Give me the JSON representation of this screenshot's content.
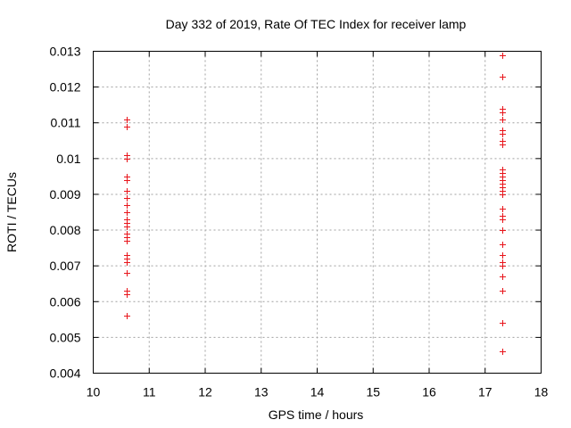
{
  "chart_data": {
    "type": "scatter",
    "title": "Day 332 of 2019, Rate Of TEC Index for receiver lamp",
    "xlabel": "GPS time / hours",
    "ylabel": "ROTI / TECUs",
    "xlim": [
      10,
      18
    ],
    "ylim": [
      0.004,
      0.013
    ],
    "xticks": [
      "10",
      "11",
      "12",
      "13",
      "14",
      "15",
      "16",
      "17",
      "18"
    ],
    "yticks": [
      "0.004",
      "0.005",
      "0.006",
      "0.007",
      "0.008",
      "0.009",
      "0.01",
      "0.011",
      "0.012",
      "0.013"
    ],
    "grid": true,
    "marker": "+",
    "marker_color": "#e8141a",
    "series": [
      {
        "name": "ROTI",
        "points": [
          [
            10.6,
            0.0111
          ],
          [
            10.6,
            0.0109
          ],
          [
            10.6,
            0.0101
          ],
          [
            10.6,
            0.01
          ],
          [
            10.6,
            0.0095
          ],
          [
            10.6,
            0.0094
          ],
          [
            10.6,
            0.0091
          ],
          [
            10.6,
            0.0089
          ],
          [
            10.6,
            0.0087
          ],
          [
            10.6,
            0.0085
          ],
          [
            10.6,
            0.0083
          ],
          [
            10.6,
            0.0082
          ],
          [
            10.6,
            0.0081
          ],
          [
            10.6,
            0.0079
          ],
          [
            10.6,
            0.0078
          ],
          [
            10.6,
            0.0077
          ],
          [
            10.6,
            0.0073
          ],
          [
            10.6,
            0.0072
          ],
          [
            10.6,
            0.0071
          ],
          [
            10.6,
            0.0068
          ],
          [
            10.6,
            0.0063
          ],
          [
            10.6,
            0.0062
          ],
          [
            10.6,
            0.0056
          ],
          [
            17.3,
            0.0129
          ],
          [
            17.3,
            0.0123
          ],
          [
            17.3,
            0.0114
          ],
          [
            17.3,
            0.0113
          ],
          [
            17.3,
            0.0111
          ],
          [
            17.3,
            0.0108
          ],
          [
            17.3,
            0.0107
          ],
          [
            17.3,
            0.0105
          ],
          [
            17.3,
            0.0104
          ],
          [
            17.3,
            0.0097
          ],
          [
            17.3,
            0.0096
          ],
          [
            17.3,
            0.0095
          ],
          [
            17.3,
            0.0094
          ],
          [
            17.3,
            0.0093
          ],
          [
            17.3,
            0.0092
          ],
          [
            17.3,
            0.0091
          ],
          [
            17.3,
            0.009
          ],
          [
            17.3,
            0.0086
          ],
          [
            17.3,
            0.0084
          ],
          [
            17.3,
            0.0083
          ],
          [
            17.3,
            0.008
          ],
          [
            17.3,
            0.0076
          ],
          [
            17.3,
            0.0073
          ],
          [
            17.3,
            0.0071
          ],
          [
            17.3,
            0.007
          ],
          [
            17.3,
            0.0067
          ],
          [
            17.3,
            0.0063
          ],
          [
            17.3,
            0.0054
          ],
          [
            17.3,
            0.0046
          ]
        ]
      }
    ]
  }
}
